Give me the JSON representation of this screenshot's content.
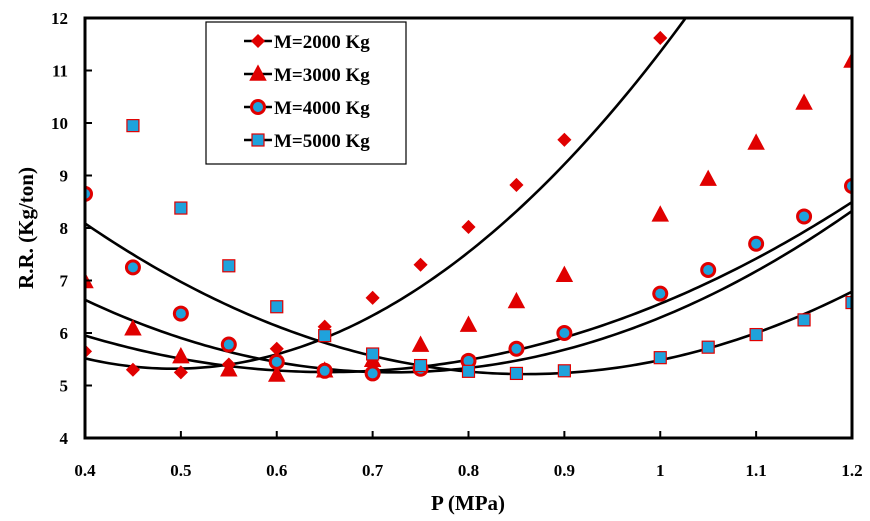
{
  "chart_data": {
    "type": "line",
    "xlabel": "P (MPa)",
    "ylabel": "R.R. (Kg/ton)",
    "xlim": [
      0.4,
      1.2
    ],
    "ylim": [
      4,
      12
    ],
    "x_ticks": [
      "0.4",
      "0.5",
      "0.6",
      "0.7",
      "0.8",
      "0.9",
      "1",
      "1.1",
      "1.2"
    ],
    "y_ticks": [
      "4",
      "5",
      "6",
      "7",
      "8",
      "9",
      "10",
      "11",
      "12"
    ],
    "grid": false,
    "legend_position": "top-left",
    "marker_fill": "#e00000",
    "square_fill": "#1fa2dc",
    "marker_edge": "#e00000",
    "line_color": "#000000",
    "series": [
      {
        "name": "M=2000 Kg",
        "marker": "diamond",
        "x": [
          0.4,
          0.45,
          0.5,
          0.55,
          0.6,
          0.65,
          0.7,
          0.75,
          0.8,
          0.85,
          0.9,
          1.0
        ],
        "values": [
          5.65,
          5.3,
          5.25,
          5.4,
          5.7,
          6.12,
          6.67,
          7.3,
          8.02,
          8.82,
          9.68,
          11.62
        ],
        "curve": {
          "a": 23.3667,
          "b": -22.9833,
          "c": 10.9717,
          "x_start": 0.4,
          "x_end": 1.2
        }
      },
      {
        "name": "M=3000 Kg",
        "marker": "triangle",
        "x": [
          0.4,
          0.45,
          0.5,
          0.55,
          0.6,
          0.65,
          0.7,
          0.75,
          0.8,
          0.85,
          0.9,
          1.0,
          1.05,
          1.1,
          1.15,
          1.2
        ],
        "values": [
          6.98,
          6.08,
          5.55,
          5.3,
          5.2,
          5.28,
          5.48,
          5.77,
          6.15,
          6.6,
          7.1,
          8.25,
          8.93,
          9.62,
          10.38,
          11.18
        ],
        "curve": {
          "a": 10.8375,
          "b": -14.1625,
          "c": 9.8825,
          "x_start": 0.4,
          "x_end": 1.2
        }
      },
      {
        "name": "M=4000 Kg",
        "marker": "circle",
        "x": [
          0.4,
          0.45,
          0.5,
          0.55,
          0.6,
          0.65,
          0.7,
          0.75,
          0.8,
          0.85,
          0.9,
          1.0,
          1.05,
          1.1,
          1.15,
          1.2
        ],
        "values": [
          8.65,
          7.25,
          6.37,
          5.78,
          5.45,
          5.28,
          5.23,
          5.32,
          5.47,
          5.7,
          6.0,
          6.75,
          7.2,
          7.7,
          8.22,
          8.8
        ],
        "curve": {
          "a": 13.3984,
          "b": -19.3203,
          "c": 12.2156,
          "x_start": 0.4,
          "x_end": 1.2
        }
      },
      {
        "name": "M=5000 Kg",
        "marker": "square",
        "x": [
          0.45,
          0.5,
          0.55,
          0.6,
          0.65,
          0.7,
          0.75,
          0.8,
          0.85,
          0.9,
          1.0,
          1.05,
          1.1,
          1.15,
          1.2
        ],
        "values": [
          9.95,
          8.38,
          7.28,
          6.5,
          5.95,
          5.6,
          5.38,
          5.27,
          5.23,
          5.28,
          5.53,
          5.73,
          5.97,
          6.25,
          6.58
        ],
        "curve": {
          "a": 13.5764,
          "b": -23.3465,
          "c": 15.2534,
          "x_start": 0.4,
          "x_end": 1.2
        }
      }
    ]
  }
}
